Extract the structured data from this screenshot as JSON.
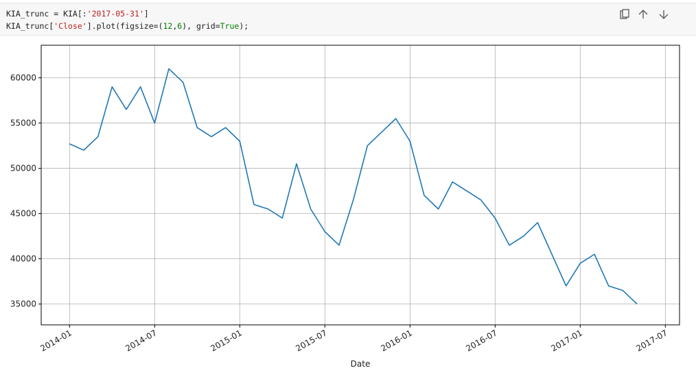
{
  "code": {
    "lines": [
      [
        {
          "text": "KIA_trunc = KIA[:",
          "color": "#212121"
        },
        {
          "text": "'2017-05-31'",
          "color": "#ba2121"
        },
        {
          "text": "]",
          "color": "#212121"
        }
      ],
      [
        {
          "text": "KIA_trunc[",
          "color": "#212121"
        },
        {
          "text": "'Close'",
          "color": "#ba2121"
        },
        {
          "text": "].plot(figsize=(",
          "color": "#212121"
        },
        {
          "text": "12",
          "color": "#008000"
        },
        {
          "text": ",",
          "color": "#212121"
        },
        {
          "text": "6",
          "color": "#008000"
        },
        {
          "text": "), grid=",
          "color": "#212121"
        },
        {
          "text": "True",
          "color": "#008000"
        },
        {
          "text": ");",
          "color": "#212121"
        }
      ]
    ]
  },
  "chart_data": {
    "type": "line",
    "xlabel": "Date",
    "x": [
      "2014-01",
      "2014-02",
      "2014-03",
      "2014-04",
      "2014-05",
      "2014-06",
      "2014-07",
      "2014-08",
      "2014-09",
      "2014-10",
      "2014-11",
      "2014-12",
      "2015-01",
      "2015-02",
      "2015-03",
      "2015-04",
      "2015-05",
      "2015-06",
      "2015-07",
      "2015-08",
      "2015-09",
      "2015-10",
      "2015-11",
      "2015-12",
      "2016-01",
      "2016-02",
      "2016-03",
      "2016-04",
      "2016-05",
      "2016-06",
      "2016-07",
      "2016-08",
      "2016-09",
      "2016-10",
      "2016-11",
      "2016-12",
      "2017-01",
      "2017-02",
      "2017-03",
      "2017-04",
      "2017-05"
    ],
    "series": [
      {
        "color": "#1f77b4",
        "values": [
          52700,
          52000,
          53500,
          59000,
          56500,
          59000,
          55000,
          61000,
          59500,
          54500,
          53500,
          54500,
          53000,
          46000,
          45500,
          44500,
          50500,
          45500,
          43000,
          41500,
          46500,
          52500,
          54000,
          55500,
          53000,
          47000,
          45500,
          48500,
          47500,
          46500,
          44500,
          41500,
          42500,
          44000,
          40500,
          37000,
          39500,
          40500,
          37000,
          36500,
          35000
        ]
      }
    ],
    "xlim": [
      "2013-11",
      "2017-08"
    ],
    "xticks": [
      "2014-01",
      "2014-07",
      "2015-01",
      "2015-07",
      "2016-01",
      "2016-07",
      "2017-01",
      "2017-07"
    ],
    "ylim": [
      32700,
      63600
    ],
    "yticks": [
      35000,
      40000,
      45000,
      50000,
      55000,
      60000
    ],
    "grid": true
  }
}
